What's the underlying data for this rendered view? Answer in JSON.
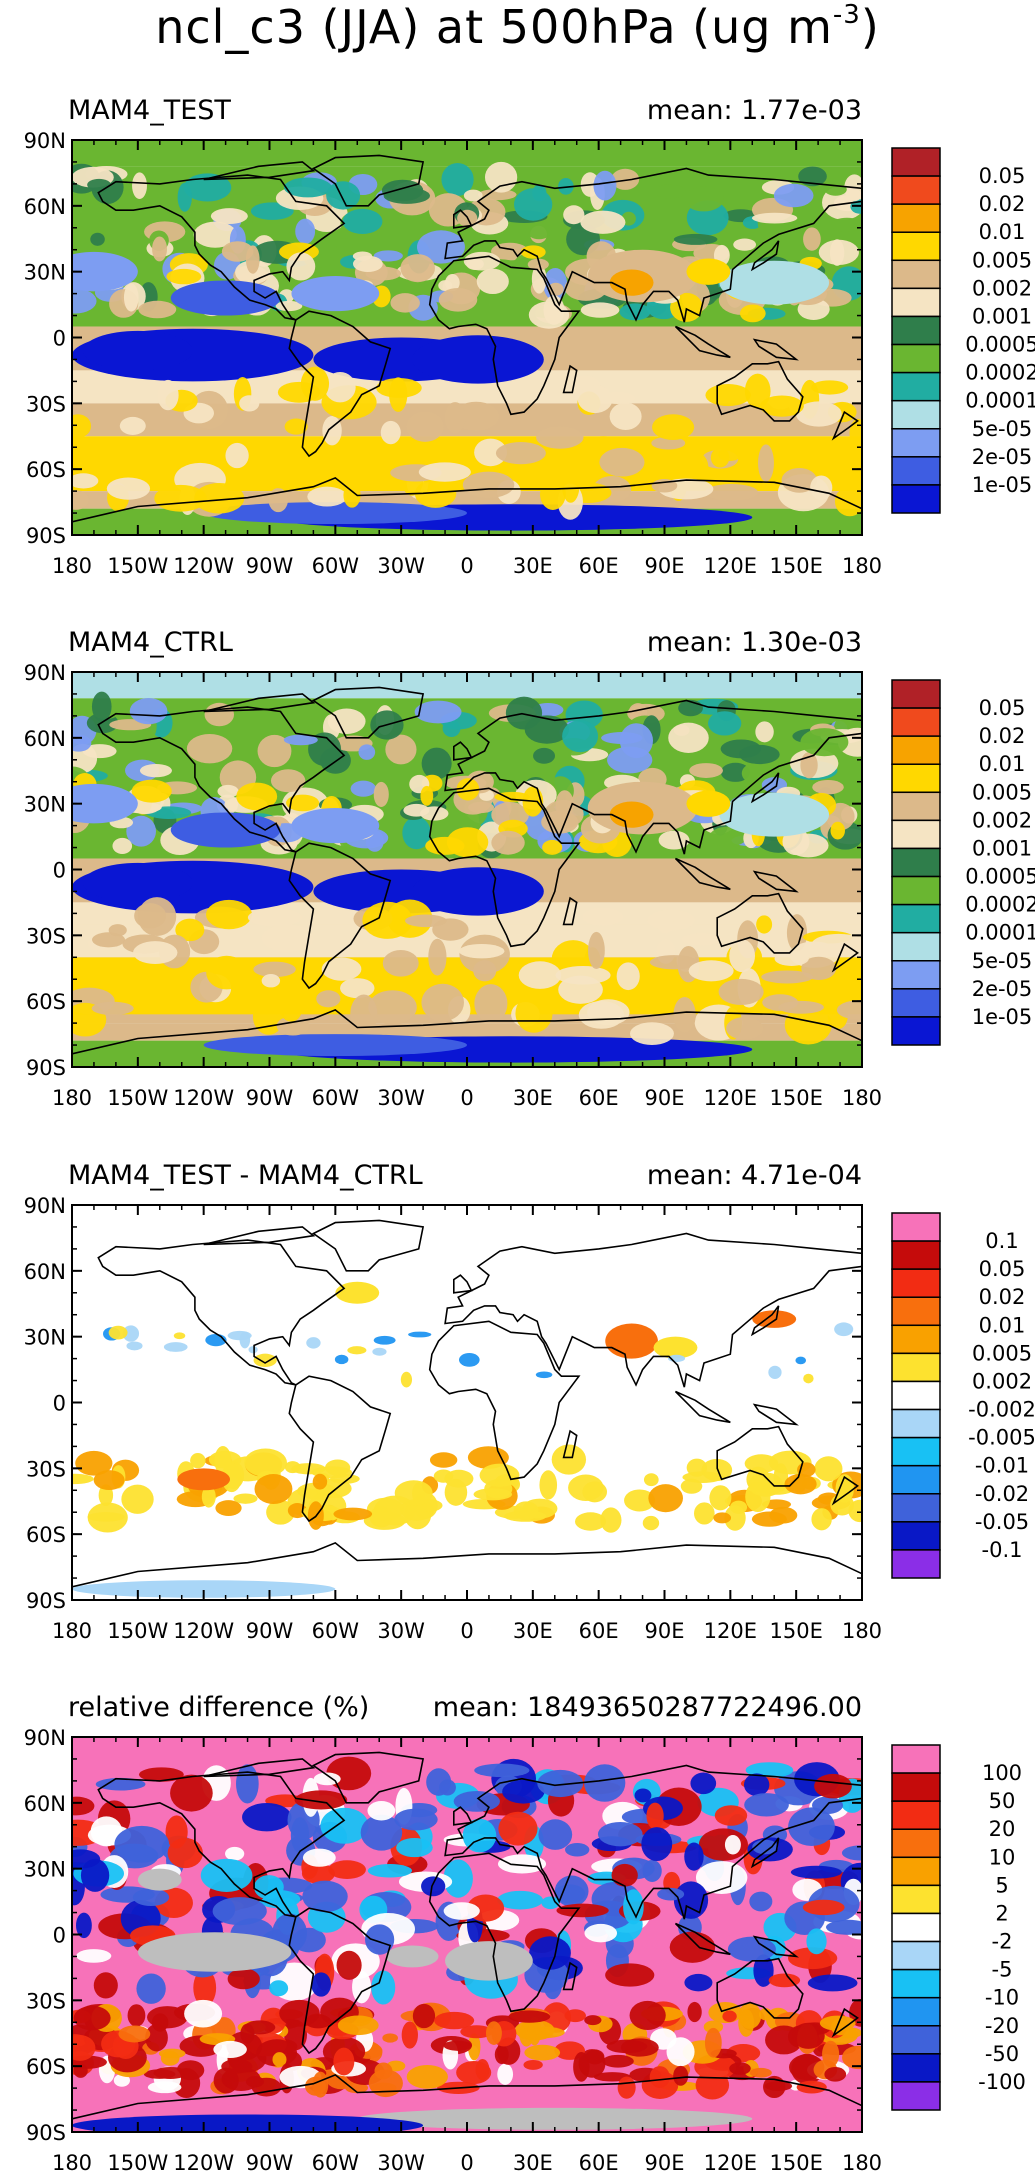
{
  "figure": {
    "title_main": "ncl_c3 (JJA) at 500hPa (ug m",
    "title_exp": "-3",
    "title_end": ")"
  },
  "colors": {
    "land_outline": "#000000",
    "missing": "#bebebe"
  },
  "chart_data": [
    {
      "type": "heatmap",
      "panel": "test",
      "title": "MAM4_TEST",
      "mean_label": "mean: 1.77e-03",
      "x_ticks": [
        "180",
        "150W",
        "120W",
        "90W",
        "60W",
        "30W",
        "0",
        "30E",
        "60E",
        "90E",
        "120E",
        "150E",
        "180"
      ],
      "y_ticks": [
        "90N",
        "60N",
        "30N",
        "0",
        "30S",
        "60S",
        "90S"
      ],
      "xlim": [
        -180,
        180
      ],
      "ylim": [
        -90,
        90
      ],
      "colorbar_labels": [
        "0.05",
        "0.02",
        "0.01",
        "0.005",
        "0.002",
        "0.001",
        "0.0005",
        "0.0002",
        "0.0001",
        "5e-05",
        "2e-05",
        "1e-05"
      ],
      "colorbar_colors": [
        "#b02127",
        "#f04a1d",
        "#f7a300",
        "#ffd800",
        "#dcb98a",
        "#f5e4c3",
        "#2f7e4b",
        "#6ab631",
        "#21ada2",
        "#afdfe5",
        "#7d9df2",
        "#3e5de2",
        "#0a16d3"
      ]
    },
    {
      "type": "heatmap",
      "panel": "ctrl",
      "title": "MAM4_CTRL",
      "mean_label": "mean: 1.30e-03",
      "x_ticks": [
        "180",
        "150W",
        "120W",
        "90W",
        "60W",
        "30W",
        "0",
        "30E",
        "60E",
        "90E",
        "120E",
        "150E",
        "180"
      ],
      "y_ticks": [
        "90N",
        "60N",
        "30N",
        "0",
        "30S",
        "60S",
        "90S"
      ],
      "xlim": [
        -180,
        180
      ],
      "ylim": [
        -90,
        90
      ],
      "colorbar_labels": [
        "0.05",
        "0.02",
        "0.01",
        "0.005",
        "0.002",
        "0.001",
        "0.0005",
        "0.0002",
        "0.0001",
        "5e-05",
        "2e-05",
        "1e-05"
      ],
      "colorbar_colors": [
        "#b02127",
        "#f04a1d",
        "#f7a300",
        "#ffd800",
        "#dcb98a",
        "#f5e4c3",
        "#2f7e4b",
        "#6ab631",
        "#21ada2",
        "#afdfe5",
        "#7d9df2",
        "#3e5de2",
        "#0a16d3"
      ]
    },
    {
      "type": "heatmap",
      "panel": "diff",
      "title": "MAM4_TEST - MAM4_CTRL",
      "mean_label": "mean: 4.71e-04",
      "x_ticks": [
        "180",
        "150W",
        "120W",
        "90W",
        "60W",
        "30W",
        "0",
        "30E",
        "60E",
        "90E",
        "120E",
        "150E",
        "180"
      ],
      "y_ticks": [
        "90N",
        "60N",
        "30N",
        "0",
        "30S",
        "60S",
        "90S"
      ],
      "xlim": [
        -180,
        180
      ],
      "ylim": [
        -90,
        90
      ],
      "colorbar_labels": [
        "0.1",
        "0.05",
        "0.02",
        "0.01",
        "0.005",
        "0.002",
        "-0.002",
        "-0.005",
        "-0.01",
        "-0.02",
        "-0.05",
        "-0.1"
      ],
      "colorbar_colors": [
        "#f772b9",
        "#c50b0b",
        "#f22c13",
        "#f86f0d",
        "#f9a100",
        "#fde22f",
        "#ffffff",
        "#a9d6f7",
        "#18c1f4",
        "#2095f1",
        "#3f62da",
        "#0918c6",
        "#8b2ee7"
      ]
    },
    {
      "type": "heatmap",
      "panel": "rel",
      "title": "relative difference (%)",
      "mean_label": "mean: 18493650287722496.00",
      "x_ticks": [
        "180",
        "150W",
        "120W",
        "90W",
        "60W",
        "30W",
        "0",
        "30E",
        "60E",
        "90E",
        "120E",
        "150E",
        "180"
      ],
      "y_ticks": [
        "90N",
        "60N",
        "30N",
        "0",
        "30S",
        "60S",
        "90S"
      ],
      "xlim": [
        -180,
        180
      ],
      "ylim": [
        -90,
        90
      ],
      "colorbar_labels": [
        "100",
        "50",
        "20",
        "10",
        "5",
        "2",
        "-2",
        "-5",
        "-10",
        "-20",
        "-50",
        "-100"
      ],
      "colorbar_colors": [
        "#f772b9",
        "#c50b0b",
        "#f22c13",
        "#f86f0d",
        "#f9a100",
        "#fde22f",
        "#ffffff",
        "#a9d6f7",
        "#18c1f4",
        "#2095f1",
        "#3f62da",
        "#0918c6",
        "#8b2ee7"
      ]
    }
  ]
}
